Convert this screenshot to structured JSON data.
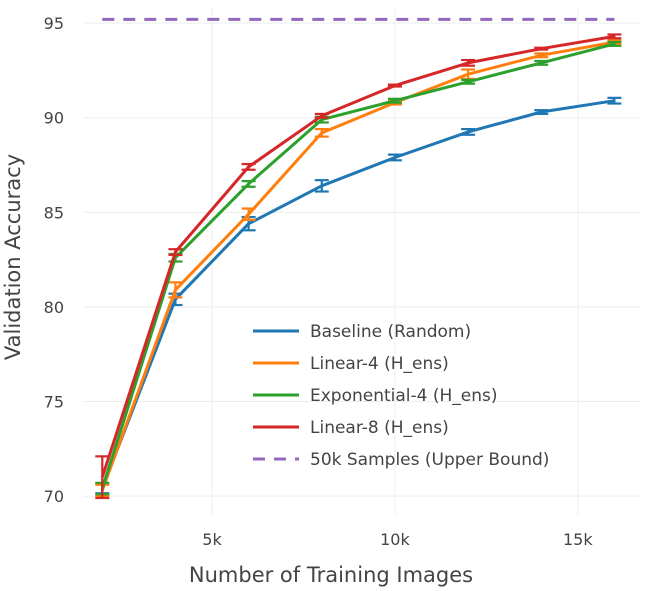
{
  "chart_data": {
    "type": "line",
    "title": "",
    "xlabel": "Number of Training Images",
    "ylabel": "Validation Accuracy",
    "xlim": [
      1500,
      16700
    ],
    "ylim": [
      69,
      95.8
    ],
    "xticks": [
      5000,
      10000,
      15000
    ],
    "xtick_labels": [
      "5k",
      "10k",
      "15k"
    ],
    "yticks": [
      70,
      75,
      80,
      85,
      90,
      95
    ],
    "ytick_labels": [
      "70",
      "75",
      "80",
      "85",
      "90",
      "95"
    ],
    "grid": true,
    "legend_position": "bottom-right",
    "x": [
      2000,
      4000,
      6000,
      8000,
      10000,
      12000,
      14000,
      16000
    ],
    "series": [
      {
        "name": "Baseline (Random)",
        "color": "#1f77b4",
        "dash": "solid",
        "x": [
          2000,
          4000,
          6000,
          8000,
          10000,
          12000,
          14000,
          16000
        ],
        "values": [
          70.4,
          80.4,
          84.4,
          86.4,
          87.9,
          89.25,
          90.3,
          90.9
        ],
        "errors": [
          0.25,
          0.3,
          0.35,
          0.3,
          0.15,
          0.15,
          0.1,
          0.15
        ]
      },
      {
        "name": "Linear-4 (H_ens)",
        "color": "#ff7f0e",
        "dash": "solid",
        "x": [
          2000,
          4000,
          6000,
          8000,
          10000,
          12000,
          14000,
          16000
        ],
        "values": [
          70.3,
          80.9,
          84.9,
          89.2,
          90.8,
          92.3,
          93.3,
          94.0
        ],
        "errors": [
          0.3,
          0.4,
          0.3,
          0.2,
          0.1,
          0.25,
          0.1,
          0.1
        ]
      },
      {
        "name": "Exponential-4 (H_ens)",
        "color": "#2ca02c",
        "dash": "solid",
        "x": [
          2000,
          4000,
          6000,
          8000,
          10000,
          12000,
          14000,
          16000
        ],
        "values": [
          70.4,
          82.6,
          86.5,
          89.9,
          90.9,
          91.9,
          92.9,
          93.9
        ],
        "errors": [
          0.3,
          0.2,
          0.15,
          0.15,
          0.1,
          0.1,
          0.1,
          0.1
        ]
      },
      {
        "name": "Linear-8 (H_ens)",
        "color": "#d62728",
        "dash": "solid",
        "x": [
          2000,
          4000,
          6000,
          8000,
          10000,
          12000,
          14000,
          16000
        ],
        "values": [
          71.0,
          82.9,
          87.4,
          90.1,
          91.7,
          92.9,
          93.65,
          94.3
        ],
        "errors": [
          1.1,
          0.15,
          0.15,
          0.1,
          0.05,
          0.15,
          0.05,
          0.1
        ]
      },
      {
        "name": "50k Samples (Upper Bound)",
        "color": "#9467bd",
        "dash": "dashed",
        "x": [
          2000,
          16000
        ],
        "values": [
          95.2,
          95.2
        ],
        "errors": null
      }
    ]
  }
}
